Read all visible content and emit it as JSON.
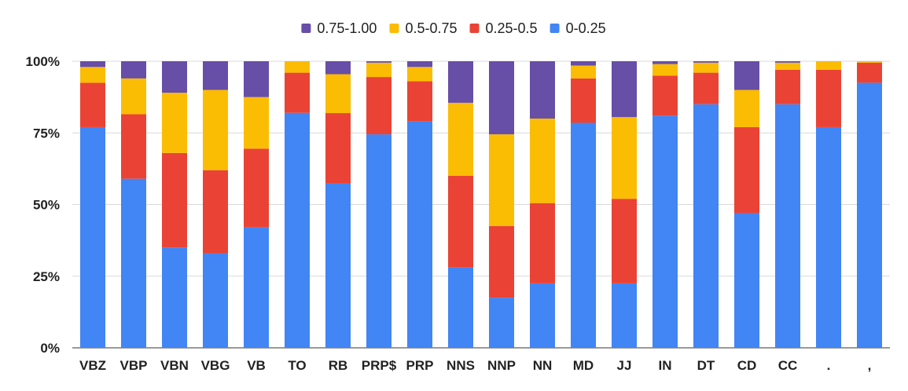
{
  "chart_data": {
    "type": "bar",
    "stacked": true,
    "normalized": true,
    "title": "",
    "xlabel": "",
    "ylabel": "",
    "ylim": [
      0,
      100
    ],
    "yticks": [
      {
        "value": 0,
        "label": "0%"
      },
      {
        "value": 25,
        "label": "25%"
      },
      {
        "value": 50,
        "label": "50%"
      },
      {
        "value": 75,
        "label": "75%"
      },
      {
        "value": 100,
        "label": "100%"
      }
    ],
    "grid": true,
    "legend_position": "top",
    "legend_order": [
      "0.75-1.00",
      "0.5-0.75",
      "0.25-0.5",
      "0-0.25"
    ],
    "categories": [
      "VBZ",
      "VBP",
      "VBN",
      "VBG",
      "VB",
      "TO",
      "RB",
      "PRP$",
      "PRP",
      "NNS",
      "NNP",
      "NN",
      "MD",
      "JJ",
      "IN",
      "DT",
      "CD",
      "CC",
      ".",
      ","
    ],
    "series": [
      {
        "name": "0-0.25",
        "color": "#4285f4",
        "values": [
          77,
          59,
          35,
          33,
          42,
          82,
          57,
          74.5,
          79,
          28,
          17.5,
          22.5,
          78.5,
          22.5,
          81,
          85,
          47,
          85,
          77,
          92.5
        ]
      },
      {
        "name": "0.25-0.5",
        "color": "#ea4335",
        "values": [
          15.5,
          22.5,
          33,
          29,
          27.5,
          14,
          24.5,
          20,
          14,
          32,
          25,
          28,
          15.5,
          29.5,
          14,
          11,
          30,
          12,
          20,
          7
        ]
      },
      {
        "name": "0.5-0.75",
        "color": "#fbbc04",
        "values": [
          5.5,
          12.5,
          21,
          28,
          18,
          4,
          13.5,
          5,
          5,
          25.5,
          32,
          29.5,
          4.5,
          28.5,
          4,
          3.5,
          13,
          2.5,
          3,
          0.5
        ]
      },
      {
        "name": "0.75-1.00",
        "color": "#674ea7",
        "values": [
          2,
          6,
          11,
          10,
          12.5,
          0,
          4.5,
          0.5,
          2,
          14.5,
          25.5,
          20,
          1.5,
          19.5,
          1,
          0.5,
          10,
          0.5,
          0,
          0
        ]
      }
    ]
  }
}
